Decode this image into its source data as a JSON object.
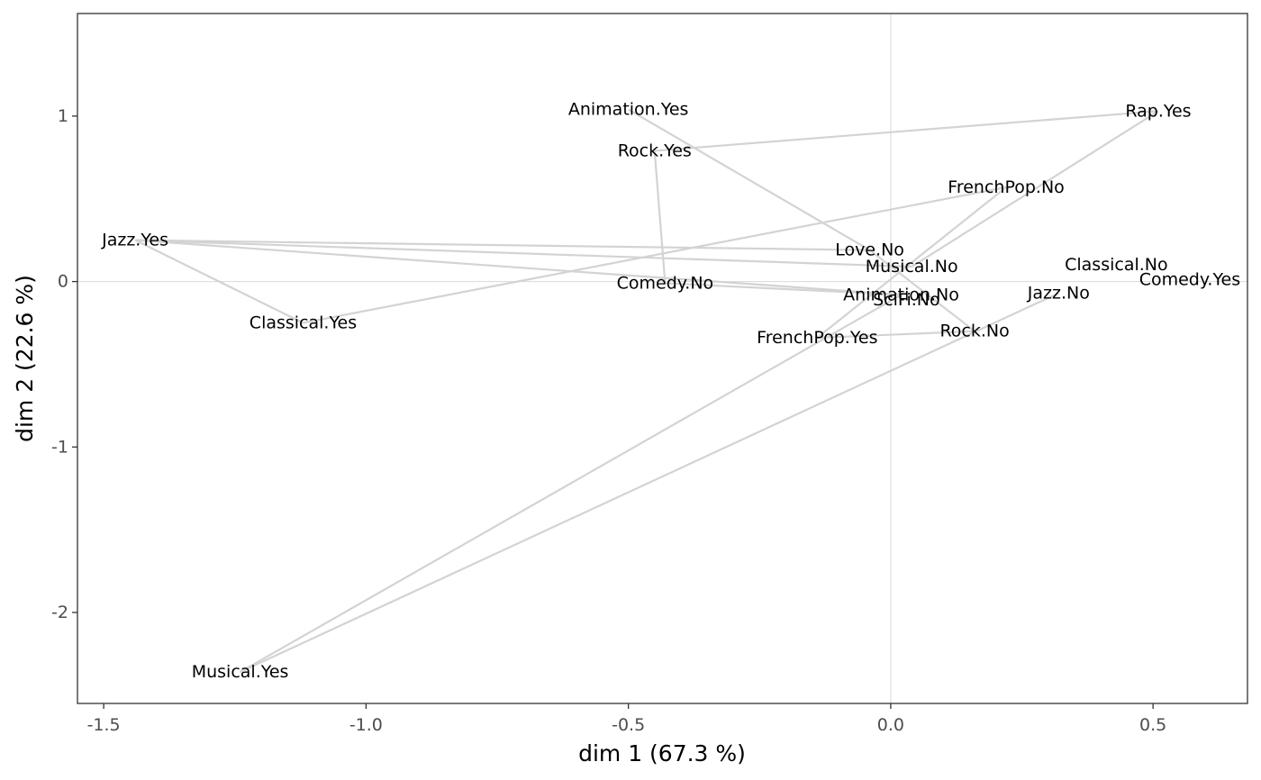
{
  "chart_data": {
    "type": "scatter",
    "title": "",
    "xlabel": "dim 1 (67.3 %)",
    "ylabel": "dim 2 (22.6 %)",
    "xlim": [
      -1.55,
      0.68
    ],
    "ylim": [
      -2.55,
      1.62
    ],
    "x_ticks": [
      -1.5,
      -1.0,
      -0.5,
      0.0,
      0.5
    ],
    "x_tick_labels": [
      "-1.5",
      "-1.0",
      "-0.5",
      "0.0",
      "0.5"
    ],
    "y_ticks": [
      -2,
      -1,
      0,
      1
    ],
    "y_tick_labels": [
      "-2",
      "-1",
      "0",
      "1"
    ],
    "grid": false,
    "reference_lines": [
      {
        "axis": "x",
        "value": 0
      },
      {
        "axis": "y",
        "value": 0
      }
    ],
    "line_color": "#d3d3d3",
    "points": [
      {
        "label": "Animation.Yes",
        "x": -0.5,
        "y": 1.04
      },
      {
        "label": "Rock.Yes",
        "x": -0.45,
        "y": 0.79
      },
      {
        "label": "Rap.Yes",
        "x": 0.51,
        "y": 1.03
      },
      {
        "label": "FrenchPop.No",
        "x": 0.22,
        "y": 0.57
      },
      {
        "label": "Jazz.Yes",
        "x": -1.44,
        "y": 0.25
      },
      {
        "label": "Love.No",
        "x": -0.04,
        "y": 0.19
      },
      {
        "label": "Musical.No",
        "x": 0.04,
        "y": 0.09
      },
      {
        "label": "Classical.No",
        "x": 0.43,
        "y": 0.1
      },
      {
        "label": "Comedy.Yes",
        "x": 0.57,
        "y": 0.01
      },
      {
        "label": "Comedy.No",
        "x": -0.43,
        "y": -0.01
      },
      {
        "label": "Animation.No",
        "x": 0.02,
        "y": -0.08
      },
      {
        "label": "SciFi.No",
        "x": 0.03,
        "y": -0.11
      },
      {
        "label": "Jazz.No",
        "x": 0.32,
        "y": -0.07
      },
      {
        "label": "Classical.Yes",
        "x": -1.12,
        "y": -0.25
      },
      {
        "label": "Rock.No",
        "x": 0.16,
        "y": -0.3
      },
      {
        "label": "FrenchPop.Yes",
        "x": -0.14,
        "y": -0.34
      },
      {
        "label": "Musical.Yes",
        "x": -1.24,
        "y": -2.36
      }
    ],
    "segments": [
      {
        "from": "Rock.Yes",
        "to": "Rap.Yes"
      },
      {
        "from": "Rock.Yes",
        "to": "Comedy.No"
      },
      {
        "from": "Animation.Yes",
        "to": "Love.No"
      },
      {
        "from": "Rap.Yes",
        "to": "Musical.No"
      },
      {
        "from": "Jazz.Yes",
        "to": "Love.No"
      },
      {
        "from": "Jazz.Yes",
        "to": "Musical.No"
      },
      {
        "from": "Jazz.Yes",
        "to": "Classical.Yes"
      },
      {
        "from": "Jazz.Yes",
        "to": "Animation.No"
      },
      {
        "from": "Classical.Yes",
        "to": "FrenchPop.No"
      },
      {
        "from": "Comedy.No",
        "to": "Animation.No"
      },
      {
        "from": "Love.No",
        "to": "Rock.No"
      },
      {
        "from": "FrenchPop.No",
        "to": "FrenchPop.Yes"
      },
      {
        "from": "Jazz.No",
        "to": "Musical.Yes"
      },
      {
        "from": "Animation.No",
        "to": "Musical.Yes"
      },
      {
        "from": "FrenchPop.Yes",
        "to": "Rock.No"
      }
    ]
  }
}
